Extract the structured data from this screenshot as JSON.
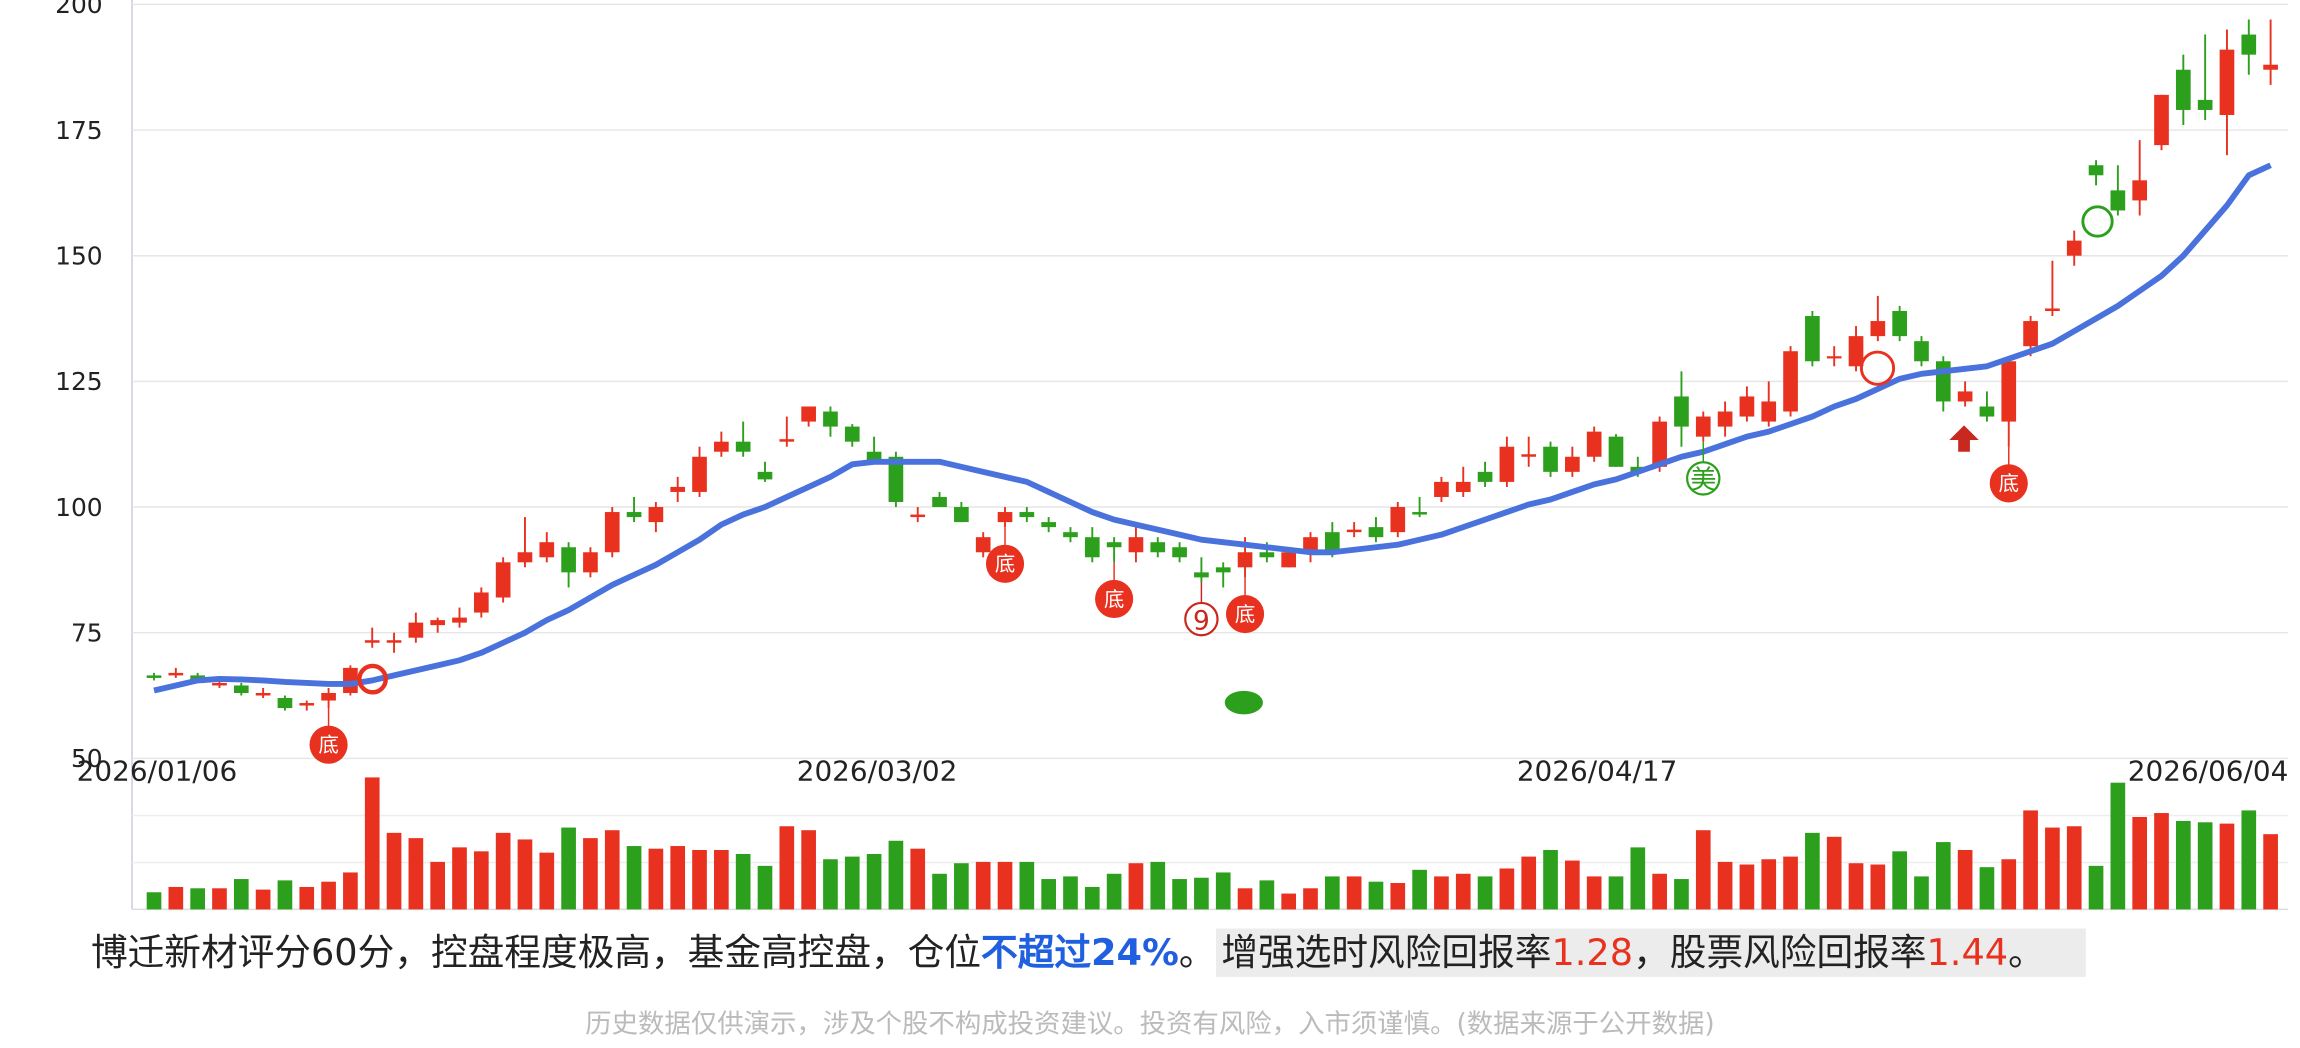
{
  "chart_data": {
    "type": "candlestick",
    "categories": [
      "2026/01/06",
      null,
      null,
      null,
      null,
      null,
      null,
      null,
      null,
      null,
      null,
      null,
      null,
      null,
      null,
      null,
      null,
      null,
      null,
      null,
      null,
      null,
      null,
      null,
      null,
      null,
      null,
      null,
      null,
      null,
      null,
      null,
      null,
      "2026/03/02",
      null,
      null,
      null,
      null,
      null,
      null,
      null,
      null,
      null,
      null,
      null,
      null,
      null,
      null,
      null,
      null,
      null,
      null,
      null,
      null,
      null,
      null,
      null,
      null,
      null,
      null,
      null,
      null,
      null,
      null,
      null,
      null,
      "2026/04/17",
      null,
      null,
      null,
      null,
      null,
      null,
      null,
      null,
      null,
      null,
      null,
      null,
      null,
      null,
      null,
      null,
      null,
      null,
      null,
      null,
      null,
      null,
      null,
      null,
      null,
      null,
      null,
      "2026/06/04",
      null,
      null,
      null
    ],
    "candles": [
      [
        66.5,
        67,
        65.5,
        66
      ],
      [
        66.5,
        68,
        66,
        67
      ],
      [
        66.5,
        67,
        65,
        65
      ],
      [
        64.5,
        66,
        64,
        65
      ],
      [
        64.5,
        65,
        62.5,
        63
      ],
      [
        62.5,
        64,
        62,
        63
      ],
      [
        62,
        62.5,
        59.5,
        60
      ],
      [
        60.5,
        61.5,
        59.5,
        61
      ],
      [
        61.5,
        64,
        60,
        63
      ],
      [
        63,
        68.5,
        62.5,
        68
      ],
      [
        73,
        76,
        72,
        73.5
      ],
      [
        73,
        75,
        71,
        73.5
      ],
      [
        74,
        79,
        73,
        77
      ],
      [
        76.5,
        78,
        75,
        77.5
      ],
      [
        77,
        80,
        76,
        78
      ],
      [
        79,
        84,
        78,
        83
      ],
      [
        82,
        90,
        81,
        89
      ],
      [
        89,
        98,
        88,
        91
      ],
      [
        90,
        95,
        89,
        93
      ],
      [
        92,
        93,
        84,
        87
      ],
      [
        87,
        92,
        86,
        91
      ],
      [
        91,
        100,
        90,
        99
      ],
      [
        99,
        102,
        97,
        98
      ],
      [
        97,
        101,
        95,
        100
      ],
      [
        103,
        106,
        101,
        104
      ],
      [
        103,
        112,
        102,
        110
      ],
      [
        111,
        115,
        110,
        113
      ],
      [
        113,
        117,
        110,
        111
      ],
      [
        107,
        109,
        105,
        105.5
      ],
      [
        113,
        118,
        112,
        113.5
      ],
      [
        117,
        120,
        116,
        120
      ],
      [
        119,
        120,
        114,
        116
      ],
      [
        116,
        116.5,
        112,
        113
      ],
      [
        111,
        114,
        109,
        109
      ],
      [
        110,
        111,
        100,
        101
      ],
      [
        98,
        100,
        97,
        98.5
      ],
      [
        102,
        103,
        100,
        100
      ],
      [
        100,
        101,
        97,
        97
      ],
      [
        91,
        95,
        90,
        94
      ],
      [
        97,
        100,
        96,
        99
      ],
      [
        99,
        100,
        97,
        98
      ],
      [
        97,
        98,
        95,
        96
      ],
      [
        95,
        96,
        93,
        94
      ],
      [
        94,
        96,
        89,
        90
      ],
      [
        93,
        94,
        89,
        92
      ],
      [
        91,
        97,
        89,
        94
      ],
      [
        93,
        94,
        90,
        91
      ],
      [
        92,
        93,
        89,
        90
      ],
      [
        87,
        90,
        85,
        86
      ],
      [
        88,
        89,
        84,
        87
      ],
      [
        88,
        94,
        86,
        91
      ],
      [
        91,
        93,
        89,
        90
      ],
      [
        88,
        92,
        88,
        91
      ],
      [
        91,
        95,
        89,
        94
      ],
      [
        95,
        97,
        90,
        91
      ],
      [
        95,
        97,
        94,
        95.5
      ],
      [
        96,
        98,
        93,
        94
      ],
      [
        95,
        101,
        94,
        100
      ],
      [
        99,
        102,
        98,
        98.5
      ],
      [
        102,
        106,
        101,
        105
      ],
      [
        103,
        108,
        102,
        105
      ],
      [
        107,
        109,
        104,
        105
      ],
      [
        105,
        114,
        104,
        112
      ],
      [
        110,
        114,
        108,
        110.5
      ],
      [
        112,
        113,
        106,
        107
      ],
      [
        107,
        112,
        106,
        110
      ],
      [
        110,
        116,
        109,
        115
      ],
      [
        114,
        114.5,
        108,
        108
      ],
      [
        108,
        110,
        106,
        107
      ],
      [
        108,
        118,
        107,
        117
      ],
      [
        122,
        127,
        112,
        116
      ],
      [
        114,
        119,
        113,
        118
      ],
      [
        116,
        121,
        114,
        119
      ],
      [
        118,
        124,
        117,
        122
      ],
      [
        117,
        125,
        116,
        121
      ],
      [
        119,
        132,
        118,
        131
      ],
      [
        138,
        139,
        128,
        129
      ],
      [
        130,
        132,
        128,
        130
      ],
      [
        128,
        136,
        127,
        134
      ],
      [
        134,
        142,
        133,
        137
      ],
      [
        139,
        140,
        133,
        134
      ],
      [
        133,
        134,
        128,
        129
      ],
      [
        129,
        130,
        119,
        121
      ],
      [
        121,
        125,
        120,
        123
      ],
      [
        120,
        123,
        117,
        118
      ],
      [
        117,
        130,
        112,
        129
      ],
      [
        132,
        138,
        130,
        137
      ],
      [
        139,
        149,
        138,
        139.5
      ],
      [
        150,
        155,
        148,
        153
      ],
      [
        168,
        169,
        164,
        166
      ],
      [
        163,
        168,
        158,
        159
      ],
      [
        161,
        173,
        158,
        165
      ],
      [
        172,
        182,
        171,
        182
      ],
      [
        187,
        190,
        176,
        179
      ],
      [
        181,
        194,
        177,
        179
      ],
      [
        178,
        195,
        170,
        191
      ],
      [
        194,
        197,
        186,
        190
      ],
      [
        187,
        197,
        184,
        188
      ]
    ],
    "ma": [
      63.5,
      64.5,
      65.5,
      65.8,
      65.7,
      65.5,
      65.2,
      65,
      64.8,
      64.8,
      65.5,
      66.5,
      67.5,
      68.5,
      69.5,
      71,
      73,
      75,
      77.5,
      79.5,
      82,
      84.5,
      86.5,
      88.5,
      91,
      93.5,
      96.5,
      98.5,
      100,
      102,
      104,
      106,
      108.5,
      109,
      109,
      109,
      109,
      108,
      107,
      106,
      105,
      103,
      101,
      99,
      97.5,
      96.5,
      95.5,
      94.5,
      93.5,
      93,
      92.5,
      92,
      91.5,
      91,
      91,
      91.5,
      92,
      92.5,
      93.5,
      94.5,
      96,
      97.5,
      99,
      100.5,
      101.5,
      103,
      104.5,
      105.5,
      107,
      108.5,
      110,
      111,
      112.5,
      114,
      115,
      116.5,
      118,
      120,
      121.5,
      123.5,
      125.5,
      126.5,
      127,
      127.5,
      128,
      129.5,
      131,
      132.5,
      135,
      137.5,
      140,
      143,
      146,
      150,
      155,
      160,
      166,
      168
    ],
    "volume": [
      13,
      17,
      16,
      16,
      23,
      15,
      22,
      17,
      21,
      28,
      100,
      58,
      54,
      36,
      47,
      44,
      58,
      53,
      43,
      62,
      54,
      60,
      48,
      46,
      48,
      45,
      45,
      42,
      33,
      63,
      60,
      38,
      40,
      42,
      52,
      46,
      27,
      35,
      36,
      36,
      36,
      23,
      25,
      17,
      27,
      35,
      36,
      23,
      24,
      28,
      16,
      22,
      12,
      16,
      25,
      25,
      21,
      20,
      30,
      25,
      27,
      25,
      31,
      40,
      45,
      37,
      25,
      25,
      47,
      27,
      23,
      60,
      36,
      34,
      38,
      40,
      58,
      55,
      35,
      34,
      44,
      25,
      51,
      45,
      32,
      38,
      75,
      62,
      63,
      33,
      96,
      70,
      73,
      67,
      66,
      65,
      75,
      57
    ],
    "volume_ylim": [
      0,
      100
    ],
    "ylim": [
      50,
      200
    ],
    "yticks": [
      50,
      75,
      100,
      125,
      150,
      175,
      200
    ],
    "grid": true,
    "up_color": "#e8311f",
    "down_color": "#2ca01c",
    "ma_color": "#4a72dc",
    "signals": [
      {
        "index": 8,
        "label": "底",
        "color": "#e8311f"
      },
      {
        "index": 39,
        "label": "底",
        "color": "#e8311f"
      },
      {
        "index": 44,
        "label": "底",
        "color": "#e8311f"
      },
      {
        "index": 50,
        "label": "底",
        "color": "#e8311f"
      },
      {
        "index": 85,
        "label": "底",
        "color": "#e8311f"
      },
      {
        "index": 48,
        "label": "9",
        "color": "#c8281e"
      },
      {
        "index": 71,
        "label": "美",
        "color": "#2ca01c"
      }
    ]
  },
  "summary": {
    "text1": "博迁新材评分60分，控盘程度极高，基金高控盘，仓位",
    "position": "不超过24%",
    "end1": "。",
    "ratio_label1": "增强选时风险回报率",
    "ratio1": 1.28,
    "ratio_label2": "，股票风险回报率",
    "ratio2": 1.44,
    "end2": "。"
  },
  "disclaimer": "历史数据仅供演示，涉及个股不构成投资建议。投资有风险，入市须谨慎。(数据来源于公开数据)"
}
